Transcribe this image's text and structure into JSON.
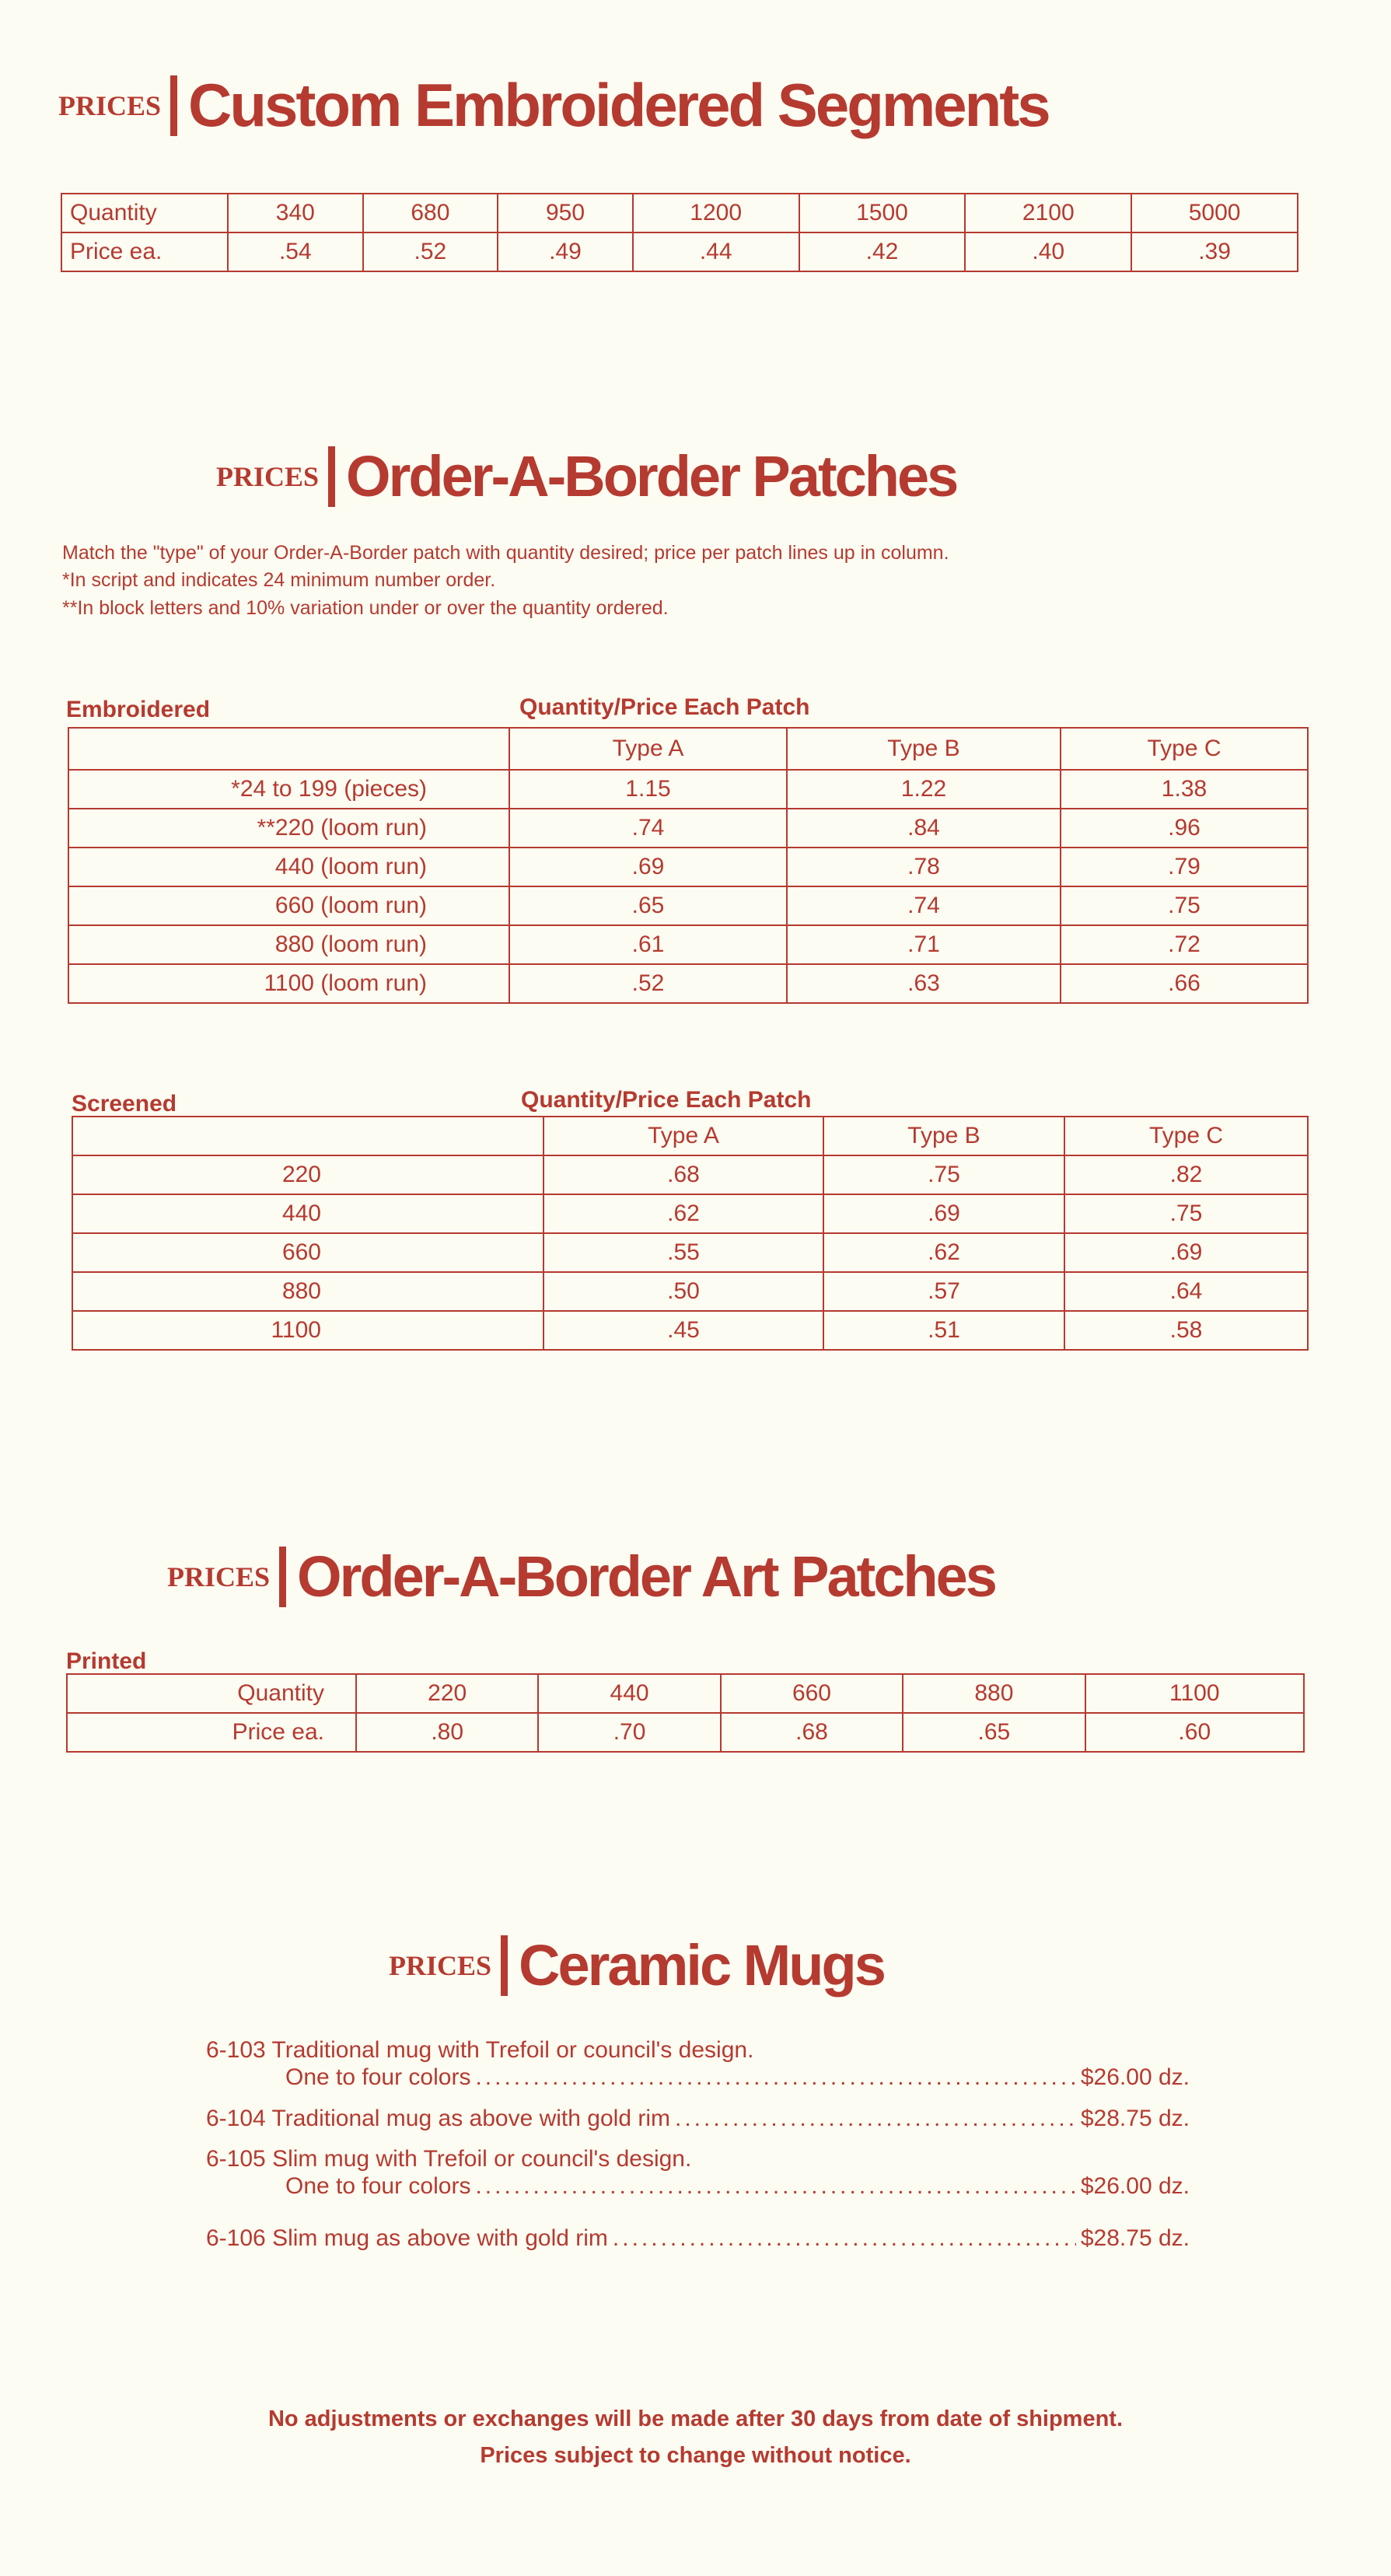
{
  "accent_color": "#b53a30",
  "background_color": "#fdfcf2",
  "segments": {
    "prices_label": "PRICES",
    "title": "Custom Embroidered Segments",
    "row_labels": [
      "Quantity",
      "Price ea."
    ],
    "quantities": [
      "340",
      "680",
      "950",
      "1200",
      "1500",
      "2100",
      "5000"
    ],
    "prices": [
      ".54",
      ".52",
      ".49",
      ".44",
      ".42",
      ".40",
      ".39"
    ]
  },
  "border_patches": {
    "prices_label": "PRICES",
    "title": "Order-A-Border Patches",
    "notes": [
      "Match the \"type\" of your Order-A-Border patch with quantity desired; price per patch lines up in column.",
      "*In script and indicates 24 minimum number order.",
      "**In block letters and 10% variation under or over the quantity ordered."
    ],
    "embroidered": {
      "label": "Embroidered",
      "group_header": "Quantity/Price Each Patch",
      "columns": [
        "Type A",
        "Type B",
        "Type C"
      ],
      "rows": [
        {
          "qty": "*24 to 199 (pieces)",
          "values": [
            "1.15",
            "1.22",
            "1.38"
          ]
        },
        {
          "qty": "**220 (loom run)",
          "values": [
            ".74",
            ".84",
            ".96"
          ]
        },
        {
          "qty": "440 (loom run)",
          "values": [
            ".69",
            ".78",
            ".79"
          ]
        },
        {
          "qty": "660 (loom run)",
          "values": [
            ".65",
            ".74",
            ".75"
          ]
        },
        {
          "qty": "880 (loom run)",
          "values": [
            ".61",
            ".71",
            ".72"
          ]
        },
        {
          "qty": "1100 (loom run)",
          "values": [
            ".52",
            ".63",
            ".66"
          ]
        }
      ]
    },
    "screened": {
      "label": "Screened",
      "group_header": "Quantity/Price Each Patch",
      "columns": [
        "Type A",
        "Type B",
        "Type C"
      ],
      "rows": [
        {
          "qty": "220",
          "values": [
            ".68",
            ".75",
            ".82"
          ]
        },
        {
          "qty": "440",
          "values": [
            ".62",
            ".69",
            ".75"
          ]
        },
        {
          "qty": "660",
          "values": [
            ".55",
            ".62",
            ".69"
          ]
        },
        {
          "qty": "880",
          "values": [
            ".50",
            ".57",
            ".64"
          ]
        },
        {
          "qty": "1100",
          "values": [
            ".45",
            ".51",
            ".58"
          ]
        }
      ]
    }
  },
  "art_patches": {
    "prices_label": "PRICES",
    "title": "Order-A-Border Art Patches",
    "label": "Printed",
    "row_labels": [
      "Quantity",
      "Price ea."
    ],
    "quantities": [
      "220",
      "440",
      "660",
      "880",
      "1100"
    ],
    "prices": [
      ".80",
      ".70",
      ".68",
      ".65",
      ".60"
    ]
  },
  "mugs": {
    "prices_label": "PRICES",
    "title": "Ceramic Mugs",
    "items": [
      {
        "line1": "6-103 Traditional mug with Trefoil or council's design.",
        "line2": "One to four colors",
        "price": "$26.00 dz."
      },
      {
        "line1": "6-104 Traditional mug as above with gold rim",
        "price": "$28.75 dz."
      },
      {
        "line1": "6-105 Slim mug with Trefoil or council's design.",
        "line2": "One to four colors",
        "price": "$26.00 dz."
      },
      {
        "line1": "6-106 Slim mug as above with gold rim",
        "price": "$28.75 dz."
      }
    ]
  },
  "footer": {
    "line1": "No adjustments or exchanges will be made after 30 days from date of shipment.",
    "line2": "Prices subject to change without notice."
  }
}
